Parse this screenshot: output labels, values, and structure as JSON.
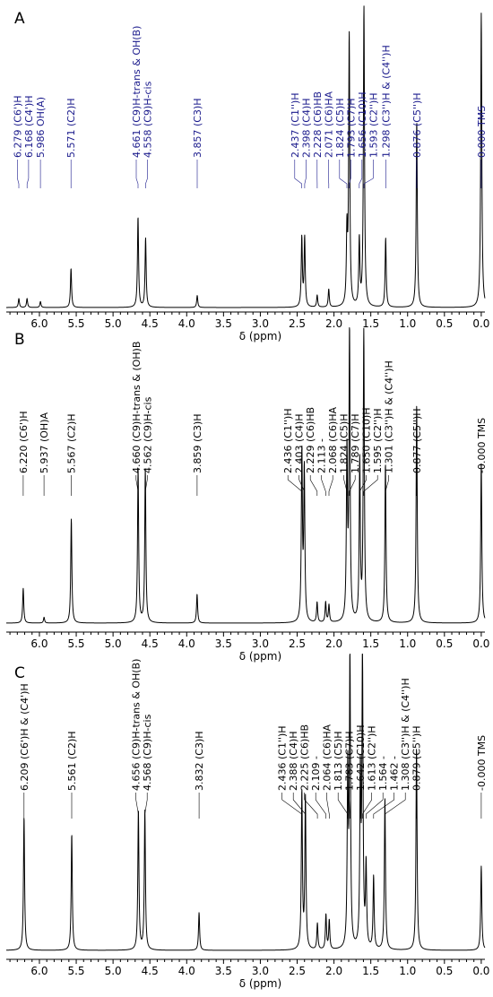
{
  "colors": {
    "panel_A_labels": "#1a1a8c",
    "panel_B_labels": "#000000",
    "panel_C_labels": "#000000",
    "spectrum": "#000000"
  },
  "chart_data": [
    {
      "type": "line",
      "panel": "A",
      "xlabel": "δ (ppm)",
      "ylabel": "",
      "xlim": [
        6.45,
        -0.05
      ],
      "x_ticks": [
        "6.0",
        "5.5",
        "5.0",
        "4.5",
        "4.0",
        "3.5",
        "3.0",
        "2.5",
        "2.0",
        "1.5",
        "1.0",
        "0.5",
        "0.0"
      ],
      "grid": false,
      "peaks": [
        {
          "ppm": 6.279,
          "height": 0.03
        },
        {
          "ppm": 6.168,
          "height": 0.03
        },
        {
          "ppm": 5.986,
          "height": 0.02
        },
        {
          "ppm": 5.571,
          "height": 0.13
        },
        {
          "ppm": 4.661,
          "height": 0.3
        },
        {
          "ppm": 4.558,
          "height": 0.23
        },
        {
          "ppm": 3.857,
          "height": 0.04
        },
        {
          "ppm": 2.437,
          "height": 0.23
        },
        {
          "ppm": 2.398,
          "height": 0.23
        },
        {
          "ppm": 2.228,
          "height": 0.04
        },
        {
          "ppm": 2.071,
          "height": 0.06
        },
        {
          "ppm": 1.824,
          "height": 0.24
        },
        {
          "ppm": 1.793,
          "height": 0.9
        },
        {
          "ppm": 1.656,
          "height": 0.22
        },
        {
          "ppm": 1.593,
          "height": 1.0
        },
        {
          "ppm": 1.298,
          "height": 0.23
        },
        {
          "ppm": 0.876,
          "height": 0.62
        },
        {
          "ppm": 0.0,
          "height": 0.98
        }
      ],
      "annotations": [
        {
          "ppm": 6.279,
          "text": "6.279 (C6')H"
        },
        {
          "ppm": 6.168,
          "text": "6.168 (C4')H"
        },
        {
          "ppm": 5.986,
          "text": "5.986 OH(A)"
        },
        {
          "ppm": 5.571,
          "text": "5.571 (C2)H"
        },
        {
          "ppm": 4.661,
          "text": "4.661 (C9)H-trans & OH(B)"
        },
        {
          "ppm": 4.558,
          "text": "4.558 (C9)H-cis"
        },
        {
          "ppm": 3.857,
          "text": "3.857 (C3)H"
        },
        {
          "ppm": 2.437,
          "text": "2.437 (C1'')H"
        },
        {
          "ppm": 2.398,
          "text": "2.398 (C4)H"
        },
        {
          "ppm": 2.228,
          "text": "2.228 (C6)HB"
        },
        {
          "ppm": 2.071,
          "text": "2.071 (C6)HA"
        },
        {
          "ppm": 1.824,
          "text": "1.824 (C5)H"
        },
        {
          "ppm": 1.793,
          "text": "1.793 (C7)H"
        },
        {
          "ppm": 1.656,
          "text": "1.656 (C10)H"
        },
        {
          "ppm": 1.593,
          "text": "1.593 (C2'')H"
        },
        {
          "ppm": 1.298,
          "text": "1.298 (C3'')H & (C4'')H"
        },
        {
          "ppm": 0.876,
          "text": "0.876 (C5'')H"
        },
        {
          "ppm": 0.0,
          "text": "0.000 TMS"
        }
      ]
    },
    {
      "type": "line",
      "panel": "B",
      "xlabel": "δ (ppm)",
      "ylabel": "",
      "xlim": [
        6.45,
        -0.05
      ],
      "x_ticks": [
        "6.0",
        "5.5",
        "5.0",
        "4.5",
        "4.0",
        "3.5",
        "3.0",
        "2.5",
        "2.0",
        "1.5",
        "1.0",
        "0.5",
        "0.0"
      ],
      "grid": false,
      "peaks": [
        {
          "ppm": 6.22,
          "height": 0.12
        },
        {
          "ppm": 5.937,
          "height": 0.02
        },
        {
          "ppm": 5.567,
          "height": 0.36
        },
        {
          "ppm": 4.66,
          "height": 0.53
        },
        {
          "ppm": 4.562,
          "height": 0.53
        },
        {
          "ppm": 3.859,
          "height": 0.1
        },
        {
          "ppm": 2.436,
          "height": 0.58
        },
        {
          "ppm": 2.403,
          "height": 0.52
        },
        {
          "ppm": 2.229,
          "height": 0.07
        },
        {
          "ppm": 2.113,
          "height": 0.07
        },
        {
          "ppm": 2.068,
          "height": 0.06
        },
        {
          "ppm": 1.824,
          "height": 0.58
        },
        {
          "ppm": 1.789,
          "height": 1.0
        },
        {
          "ppm": 1.65,
          "height": 0.55
        },
        {
          "ppm": 1.595,
          "height": 1.0
        },
        {
          "ppm": 1.301,
          "height": 0.55
        },
        {
          "ppm": 0.877,
          "height": 0.75
        },
        {
          "ppm": 0.0,
          "height": 0.55
        }
      ],
      "annotations": [
        {
          "ppm": 6.22,
          "text": "6.220 (C6')H"
        },
        {
          "ppm": 5.937,
          "text": "5.937 (OH)A"
        },
        {
          "ppm": 5.567,
          "text": "5.567 (C2)H"
        },
        {
          "ppm": 4.66,
          "text": "4.660 (C9)H-trans & (OH)B"
        },
        {
          "ppm": 4.562,
          "text": "4.562 (C9)H-cis"
        },
        {
          "ppm": 3.859,
          "text": "3.859 (C3)H"
        },
        {
          "ppm": 2.436,
          "text": "2.436 (C1'')H"
        },
        {
          "ppm": 2.403,
          "text": "2.403 (C4)H"
        },
        {
          "ppm": 2.229,
          "text": "2.229 (C6)HB"
        },
        {
          "ppm": 2.113,
          "text": "2.113 -"
        },
        {
          "ppm": 2.068,
          "text": "2.068 (C6)HA"
        },
        {
          "ppm": 1.824,
          "text": "1.824 (C5)H"
        },
        {
          "ppm": 1.789,
          "text": "1.789 (C7)H"
        },
        {
          "ppm": 1.65,
          "text": "1.650 (C10)H"
        },
        {
          "ppm": 1.595,
          "text": "1.595 (C2'')H"
        },
        {
          "ppm": 1.301,
          "text": "1.301 (C3'')H & (C4'')H"
        },
        {
          "ppm": 0.877,
          "text": "0.877 (C5'')H"
        },
        {
          "ppm": 0.0,
          "text": "-0.000 TMS"
        }
      ]
    },
    {
      "type": "line",
      "panel": "C",
      "xlabel": "δ (ppm)",
      "ylabel": "",
      "xlim": [
        6.45,
        -0.05
      ],
      "x_ticks": [
        "6.0",
        "5.5",
        "5.0",
        "4.5",
        "4.0",
        "3.5",
        "3.0",
        "2.5",
        "2.0",
        "1.5",
        "1.0",
        "0.5",
        "0.0"
      ],
      "grid": false,
      "peaks": [
        {
          "ppm": 6.209,
          "height": 0.46
        },
        {
          "ppm": 5.561,
          "height": 0.4
        },
        {
          "ppm": 4.656,
          "height": 0.48
        },
        {
          "ppm": 4.568,
          "height": 0.48
        },
        {
          "ppm": 3.832,
          "height": 0.13
        },
        {
          "ppm": 2.436,
          "height": 0.54
        },
        {
          "ppm": 2.388,
          "height": 0.52
        },
        {
          "ppm": 2.225,
          "height": 0.09
        },
        {
          "ppm": 2.109,
          "height": 0.12
        },
        {
          "ppm": 2.064,
          "height": 0.1
        },
        {
          "ppm": 1.813,
          "height": 0.6
        },
        {
          "ppm": 1.783,
          "height": 1.0
        },
        {
          "ppm": 1.642,
          "height": 0.58
        },
        {
          "ppm": 1.613,
          "height": 1.0
        },
        {
          "ppm": 1.564,
          "height": 0.28
        },
        {
          "ppm": 1.462,
          "height": 0.25
        },
        {
          "ppm": 1.308,
          "height": 0.52
        },
        {
          "ppm": 0.879,
          "height": 0.7
        },
        {
          "ppm": 0.0,
          "height": 0.29
        }
      ],
      "annotations": [
        {
          "ppm": 6.209,
          "text": "6.209 (C6')H & (C4')H"
        },
        {
          "ppm": 5.561,
          "text": "5.561 (C2)H"
        },
        {
          "ppm": 4.656,
          "text": "4.656 (C9)H-trans & OH(B)"
        },
        {
          "ppm": 4.568,
          "text": "4.568 (C9)H-cis"
        },
        {
          "ppm": 3.832,
          "text": "3.832 (C3)H"
        },
        {
          "ppm": 2.436,
          "text": "2.436 (C1'')H"
        },
        {
          "ppm": 2.388,
          "text": "2.388 (C4)H"
        },
        {
          "ppm": 2.225,
          "text": "2.225 (C6)HB"
        },
        {
          "ppm": 2.109,
          "text": "2.109 -"
        },
        {
          "ppm": 2.064,
          "text": "2.064 (C6)HA"
        },
        {
          "ppm": 1.813,
          "text": "1.813 (C5)H"
        },
        {
          "ppm": 1.783,
          "text": "1.783 (C7)H"
        },
        {
          "ppm": 1.642,
          "text": "1.642 (C10)H"
        },
        {
          "ppm": 1.613,
          "text": "1.613 (C2'')H"
        },
        {
          "ppm": 1.564,
          "text": "1.564 -"
        },
        {
          "ppm": 1.462,
          "text": "1.462 -"
        },
        {
          "ppm": 1.308,
          "text": "1.308 (C3'')H & (C4'')H"
        },
        {
          "ppm": 0.879,
          "text": "0.879 (C5'')H"
        },
        {
          "ppm": 0.0,
          "text": "-0.000 TMS"
        }
      ]
    }
  ]
}
